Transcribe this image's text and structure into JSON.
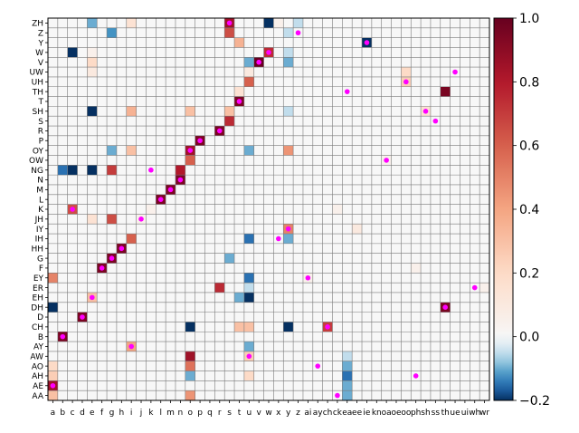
{
  "chart_data": {
    "type": "heatmap",
    "x_labels": [
      "a",
      "b",
      "c",
      "d",
      "e",
      "f",
      "g",
      "h",
      "i",
      "j",
      "k",
      "l",
      "m",
      "n",
      "o",
      "p",
      "q",
      "r",
      "s",
      "t",
      "u",
      "v",
      "w",
      "x",
      "y",
      "z",
      "ai",
      "ay",
      "ch",
      "ck",
      "ea",
      "ee",
      "ie",
      "kn",
      "oa",
      "oe",
      "oo",
      "ph",
      "sh",
      "ss",
      "th",
      "ue",
      "ui",
      "wh",
      "wr"
    ],
    "y_labels": [
      "ZH",
      "Z",
      "Y",
      "W",
      "V",
      "UW",
      "UH",
      "TH",
      "T",
      "SH",
      "S",
      "R",
      "P",
      "OY",
      "OW",
      "NG",
      "N",
      "M",
      "L",
      "K",
      "JH",
      "IY",
      "IH",
      "HH",
      "G",
      "F",
      "EY",
      "ER",
      "EH",
      "DH",
      "D",
      "CH",
      "B",
      "AY",
      "AW",
      "AO",
      "AH",
      "AE",
      "AA"
    ],
    "colorbar": {
      "min": -0.2,
      "max": 1.0,
      "ticks": [
        1.0,
        0.8,
        0.6,
        0.4,
        0.2,
        0.0,
        -0.2
      ],
      "tick_labels": [
        "1.0",
        "0.8",
        "0.6",
        "0.4",
        "0.2",
        "0.0",
        "−0.2"
      ],
      "colormap": "RdBu_r"
    },
    "grid": true,
    "background_value": 0.0,
    "cells": [
      [
        "ZH",
        "e",
        -0.1
      ],
      [
        "ZH",
        "i",
        0.15
      ],
      [
        "ZH",
        "s",
        0.85
      ],
      [
        "ZH",
        "w",
        -0.45
      ],
      [
        "ZH",
        "x",
        0.05
      ],
      [
        "ZH",
        "z",
        -0.05
      ],
      [
        "Z",
        "g",
        -0.12
      ],
      [
        "Z",
        "s",
        0.65
      ],
      [
        "Z",
        "y",
        -0.05
      ],
      [
        "Y",
        "t",
        0.35
      ],
      [
        "Y",
        "ie",
        -0.3
      ],
      [
        "W",
        "c",
        -1.0
      ],
      [
        "W",
        "e",
        0.05
      ],
      [
        "W",
        "w",
        0.75
      ],
      [
        "W",
        "y",
        -0.05
      ],
      [
        "V",
        "e",
        0.2
      ],
      [
        "V",
        "u",
        -0.1
      ],
      [
        "V",
        "v",
        1.0
      ],
      [
        "V",
        "y",
        -0.1
      ],
      [
        "UW",
        "e",
        0.1
      ],
      [
        "UW",
        "u",
        0.1
      ],
      [
        "UW",
        "oo",
        0.2
      ],
      [
        "UH",
        "u",
        0.6
      ],
      [
        "UH",
        "oo",
        0.25
      ],
      [
        "TH",
        "t",
        0.15
      ],
      [
        "TH",
        "th",
        0.95
      ],
      [
        "T",
        "t",
        0.95
      ],
      [
        "SH",
        "e",
        -0.35
      ],
      [
        "SH",
        "i",
        0.35
      ],
      [
        "SH",
        "o",
        0.3
      ],
      [
        "SH",
        "s",
        0.3
      ],
      [
        "SH",
        "y",
        -0.05
      ],
      [
        "SH",
        "sh",
        0.15
      ],
      [
        "S",
        "s",
        0.75
      ],
      [
        "R",
        "r",
        0.95
      ],
      [
        "P",
        "p",
        0.95
      ],
      [
        "OY",
        "g",
        -0.1
      ],
      [
        "OY",
        "i",
        0.3
      ],
      [
        "OY",
        "o",
        0.85
      ],
      [
        "OY",
        "u",
        -0.1
      ],
      [
        "OY",
        "y",
        0.45
      ],
      [
        "OW",
        "o",
        0.6
      ],
      [
        "OW",
        "oa",
        0.05
      ],
      [
        "NG",
        "b",
        -0.15
      ],
      [
        "NG",
        "c",
        -0.45
      ],
      [
        "NG",
        "e",
        -0.2
      ],
      [
        "NG",
        "g",
        0.7
      ],
      [
        "NG",
        "n",
        0.8
      ],
      [
        "N",
        "n",
        0.95
      ],
      [
        "M",
        "m",
        0.95
      ],
      [
        "L",
        "l",
        0.95
      ],
      [
        "K",
        "c",
        0.65
      ],
      [
        "K",
        "k",
        0.05
      ],
      [
        "K",
        "ck",
        0.05
      ],
      [
        "JH",
        "e",
        0.15
      ],
      [
        "JH",
        "g",
        0.65
      ],
      [
        "JH",
        "j",
        0.05
      ],
      [
        "IY",
        "y",
        0.5
      ],
      [
        "IY",
        "ee",
        0.1
      ],
      [
        "IH",
        "i",
        0.6
      ],
      [
        "IH",
        "u",
        -0.15
      ],
      [
        "IH",
        "y",
        -0.1
      ],
      [
        "HH",
        "h",
        0.95
      ],
      [
        "G",
        "g",
        0.95
      ],
      [
        "G",
        "s",
        -0.1
      ],
      [
        "F",
        "f",
        0.95
      ],
      [
        "F",
        "ph",
        0.05
      ],
      [
        "EY",
        "a",
        0.5
      ],
      [
        "EY",
        "u",
        -0.15
      ],
      [
        "EY",
        "ai",
        0.05
      ],
      [
        "ER",
        "r",
        0.75
      ],
      [
        "ER",
        "u",
        -0.05
      ],
      [
        "ER",
        "wr",
        0.05
      ],
      [
        "EH",
        "e",
        0.3
      ],
      [
        "EH",
        "t",
        -0.1
      ],
      [
        "EH",
        "u",
        -0.45
      ],
      [
        "DH",
        "a",
        -0.2
      ],
      [
        "DH",
        "th",
        0.95
      ],
      [
        "D",
        "d",
        0.95
      ],
      [
        "CH",
        "o",
        -0.45
      ],
      [
        "CH",
        "t",
        0.3
      ],
      [
        "CH",
        "u",
        0.3
      ],
      [
        "CH",
        "y",
        -0.2
      ],
      [
        "CH",
        "ch",
        0.7
      ],
      [
        "B",
        "b",
        0.95
      ],
      [
        "AY",
        "i",
        0.4
      ],
      [
        "AY",
        "u",
        -0.1
      ],
      [
        "AW",
        "o",
        0.85
      ],
      [
        "AW",
        "u",
        0.25
      ],
      [
        "AW",
        "ea",
        -0.05
      ],
      [
        "AO",
        "a",
        0.2
      ],
      [
        "AO",
        "o",
        0.55
      ],
      [
        "AO",
        "ea",
        -0.1
      ],
      [
        "AH",
        "a",
        0.25
      ],
      [
        "AH",
        "o",
        -0.1
      ],
      [
        "AH",
        "u",
        0.2
      ],
      [
        "AH",
        "ea",
        -0.15
      ],
      [
        "AE",
        "a",
        0.85
      ],
      [
        "AE",
        "ea",
        -0.1
      ],
      [
        "AA",
        "a",
        0.3
      ],
      [
        "AA",
        "o",
        0.45
      ],
      [
        "AA",
        "ea",
        -0.1
      ]
    ],
    "markers": [
      [
        "ZH",
        "s"
      ],
      [
        "Z",
        "z"
      ],
      [
        "Y",
        "ie"
      ],
      [
        "W",
        "w"
      ],
      [
        "V",
        "v"
      ],
      [
        "UW",
        "ue"
      ],
      [
        "UH",
        "oo"
      ],
      [
        "TH",
        "ea"
      ],
      [
        "T",
        "t"
      ],
      [
        "SH",
        "sh"
      ],
      [
        "S",
        "ss"
      ],
      [
        "R",
        "r"
      ],
      [
        "P",
        "p"
      ],
      [
        "OY",
        "o"
      ],
      [
        "OW",
        "oa"
      ],
      [
        "NG",
        "k"
      ],
      [
        "N",
        "n"
      ],
      [
        "M",
        "m"
      ],
      [
        "L",
        "l"
      ],
      [
        "K",
        "c"
      ],
      [
        "JH",
        "j"
      ],
      [
        "IY",
        "y"
      ],
      [
        "IH",
        "x"
      ],
      [
        "HH",
        "h"
      ],
      [
        "G",
        "g"
      ],
      [
        "F",
        "f"
      ],
      [
        "EY",
        "ai"
      ],
      [
        "ER",
        "wh"
      ],
      [
        "EH",
        "e"
      ],
      [
        "DH",
        "th"
      ],
      [
        "D",
        "d"
      ],
      [
        "CH",
        "ch"
      ],
      [
        "B",
        "b"
      ],
      [
        "AY",
        "i"
      ],
      [
        "AW",
        "u"
      ],
      [
        "AO",
        "ay"
      ],
      [
        "AH",
        "ph"
      ],
      [
        "AE",
        "a"
      ],
      [
        "AA",
        "ck"
      ]
    ],
    "marker_color": "#ff00ff"
  }
}
